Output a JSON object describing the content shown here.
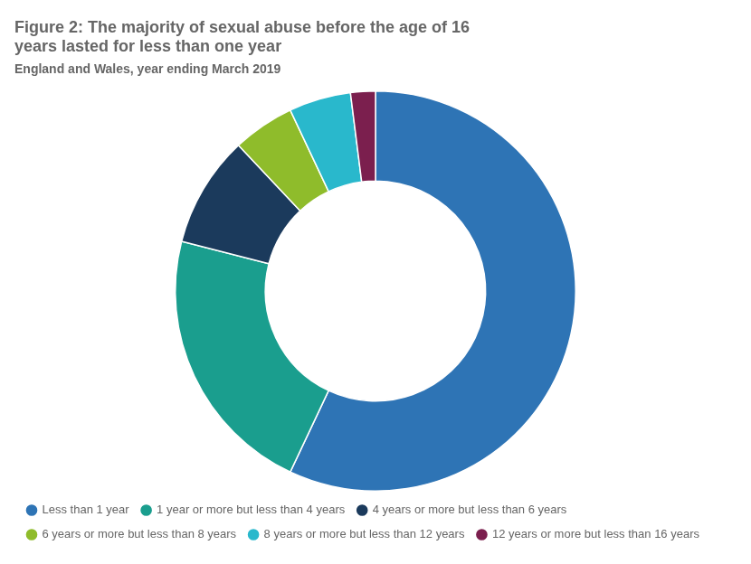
{
  "chart_data": {
    "type": "doughnut",
    "title": [
      "Figure 2: The majority of sexual abuse before the age of 16",
      "years lasted for less than one year"
    ],
    "subtitle": "England and Wales, year ending March 2019",
    "categories": [
      "Less than 1 year",
      "1 year or more but less than 4 years",
      "4 years or more but less than 6 years",
      "6 years or more but less than 8 years",
      "8 years or more but less than 12 years",
      "12 years or more but less than 16 years"
    ],
    "values": [
      57.0,
      22.0,
      9.0,
      5.0,
      5.0,
      2.0
    ],
    "colors": [
      "#2e74b5",
      "#1a9e8e",
      "#1b3a5c",
      "#8fbc2b",
      "#29b8cc",
      "#7b1f4e"
    ],
    "legend": "bottom"
  }
}
